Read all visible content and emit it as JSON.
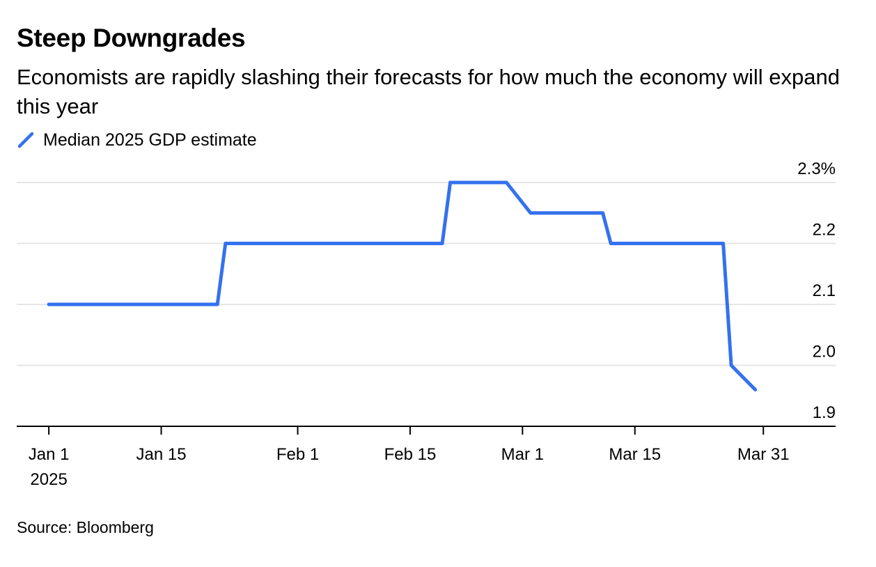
{
  "title": "Steep Downgrades",
  "subtitle": "Economists are rapidly slashing their forecasts for how much the economy will expand this year",
  "source": "Source: Bloomberg",
  "colors": {
    "series": "#3471ee",
    "grid": "#e6e6e6",
    "axis": "#000000"
  },
  "chart_data": {
    "type": "line",
    "series": [
      {
        "name": "Median 2025 GDP estimate",
        "points": [
          {
            "x": "2025-01-01",
            "y": 2.1
          },
          {
            "x": "2025-01-22",
            "y": 2.1
          },
          {
            "x": "2025-01-23",
            "y": 2.2
          },
          {
            "x": "2025-02-19",
            "y": 2.2
          },
          {
            "x": "2025-02-20",
            "y": 2.3
          },
          {
            "x": "2025-02-27",
            "y": 2.3
          },
          {
            "x": "2025-03-02",
            "y": 2.25
          },
          {
            "x": "2025-03-11",
            "y": 2.25
          },
          {
            "x": "2025-03-12",
            "y": 2.2
          },
          {
            "x": "2025-03-26",
            "y": 2.2
          },
          {
            "x": "2025-03-27",
            "y": 2.0
          },
          {
            "x": "2025-03-30",
            "y": 1.96
          }
        ]
      }
    ],
    "x_ticks": [
      {
        "date": "2025-01-01",
        "label": "Jan 1",
        "sublabel": "2025"
      },
      {
        "date": "2025-01-15",
        "label": "Jan 15"
      },
      {
        "date": "2025-02-01",
        "label": "Feb 1"
      },
      {
        "date": "2025-02-15",
        "label": "Feb 15"
      },
      {
        "date": "2025-03-01",
        "label": "Mar 1"
      },
      {
        "date": "2025-03-15",
        "label": "Mar 15"
      },
      {
        "date": "2025-03-31",
        "label": "Mar 31"
      }
    ],
    "y_ticks": [
      {
        "value": 2.3,
        "label": "2.3%"
      },
      {
        "value": 2.2,
        "label": "2.2"
      },
      {
        "value": 2.1,
        "label": "2.1"
      },
      {
        "value": 2.0,
        "label": "2.0"
      },
      {
        "value": 1.9,
        "label": "1.9"
      }
    ],
    "xlim": [
      "2024-12-28",
      "2025-04-09"
    ],
    "ylim": [
      1.9,
      2.3
    ],
    "grid": true,
    "y_axis_position": "right",
    "legend_position": "top-left"
  }
}
